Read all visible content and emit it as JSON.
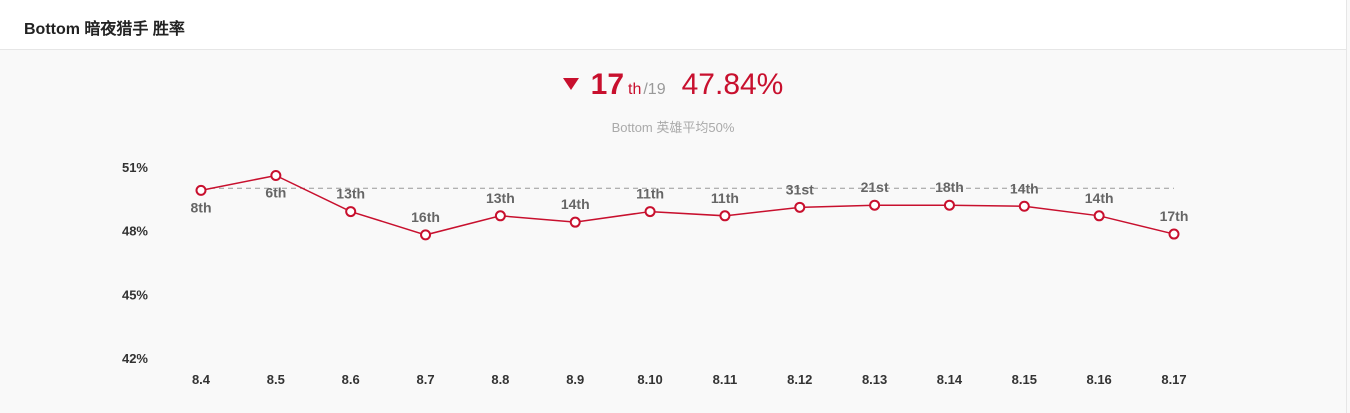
{
  "header": {
    "title": "Bottom 暗夜猎手 胜率"
  },
  "summary": {
    "rank": "17",
    "rank_suffix": "th",
    "rank_total": "/19",
    "winrate": "47.84%",
    "trend": "down",
    "subtitle": "Bottom 英雄平均50%"
  },
  "colors": {
    "accent": "#c8102e",
    "reference": "#999999"
  },
  "chart_data": {
    "type": "line",
    "categories": [
      "8.4",
      "8.5",
      "8.6",
      "8.7",
      "8.8",
      "8.9",
      "8.10",
      "8.11",
      "8.12",
      "8.13",
      "8.14",
      "8.15",
      "8.16",
      "8.17"
    ],
    "values": [
      49.9,
      50.6,
      48.9,
      47.8,
      48.7,
      48.4,
      48.9,
      48.7,
      49.1,
      49.2,
      49.2,
      49.15,
      48.7,
      47.84
    ],
    "rank_labels": [
      "8th",
      "6th",
      "13th",
      "16th",
      "13th",
      "14th",
      "11th",
      "11th",
      "31st",
      "21st",
      "18th",
      "14th",
      "14th",
      "17th"
    ],
    "yticks": [
      "51%",
      "48%",
      "45%",
      "42%"
    ],
    "ylim": [
      42,
      51
    ],
    "reference_line": 50,
    "grid": false,
    "legend": "none"
  }
}
